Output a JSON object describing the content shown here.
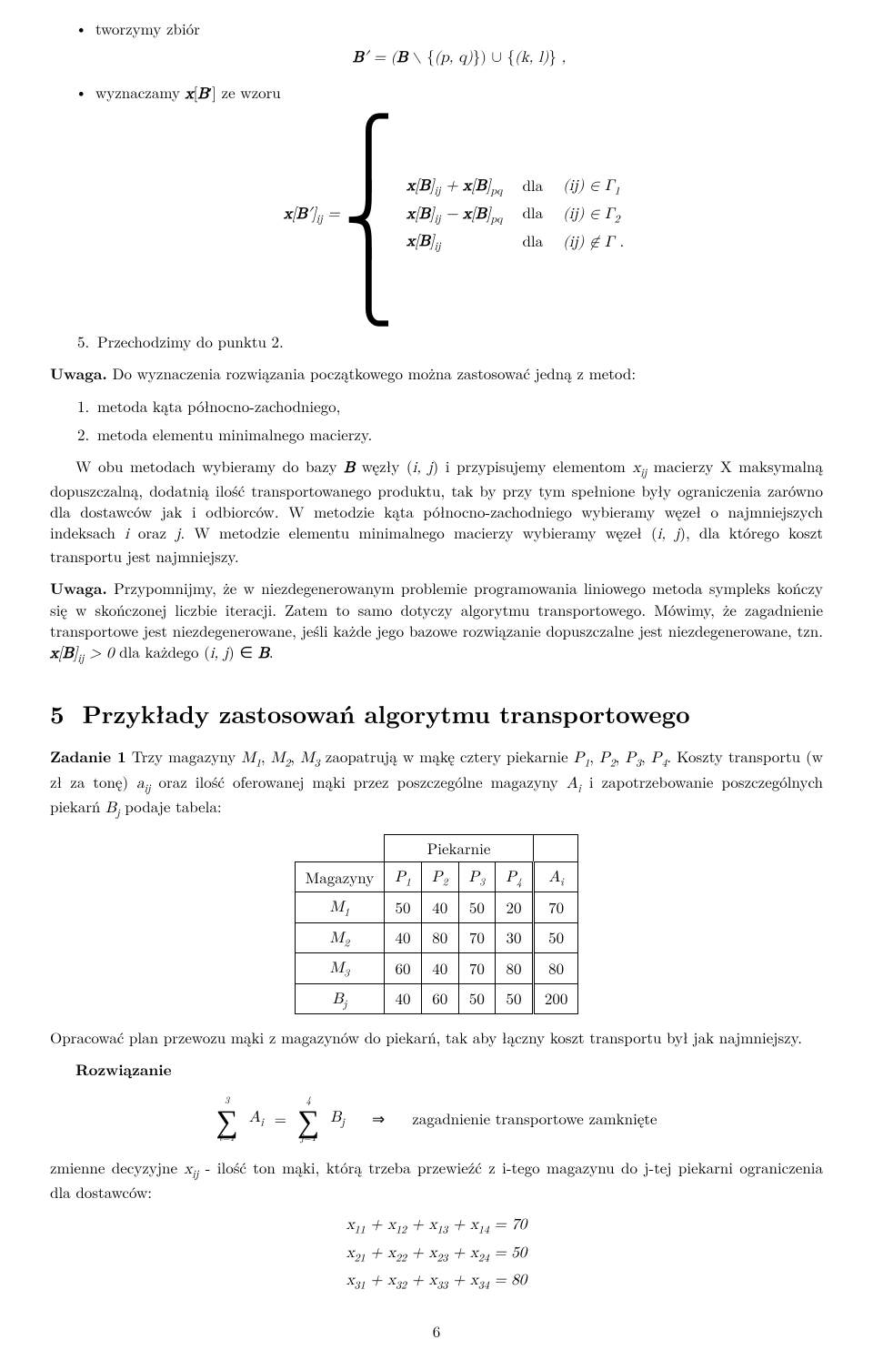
{
  "top_list": {
    "item1": "tworzymy zbiór",
    "item2_pre": "wyznaczamy ",
    "item2_math": "x[B′]",
    "item2_post": " ze wzoru"
  },
  "formula1": "B′ = (B ∖ {(p, q)}) ∪ {(k, l)} ,",
  "brace": {
    "lhs": "x[B′]",
    "lhs_sub": "ij",
    "eq": " = ",
    "row1a": "x[B]",
    "row1a_sub": "ij",
    "row1plus": " + x[B]",
    "row1b_sub": "pq",
    "row1dla": "dla",
    "row1c": "(ij) ∈ Γ",
    "row1c_sub": "1",
    "row2a": "x[B]",
    "row2a_sub": "ij",
    "row2minus": " − x[B]",
    "row2b_sub": "pq",
    "row2dla": "dla",
    "row2c": "(ij) ∈ Γ",
    "row2c_sub": "2",
    "row3a": "x[B]",
    "row3a_sub": "ij",
    "row3dla": "dla",
    "row3c": "(ij) ∉ Γ ."
  },
  "step5_num": "5.",
  "step5": "Przechodzimy do punktu 2.",
  "uwaga1_label": "Uwaga.",
  "uwaga1_text": " Do wyznaczenia rozwiązania początkowego można zastosować jedną z metod:",
  "methods": {
    "m1_num": "1.",
    "m1": "metoda kąta północno-zachodniego,",
    "m2_num": "2.",
    "m2": "metoda elementu minimalnego macierzy."
  },
  "big_para1": "W obu metodach wybieramy do bazy B węzły (i, j) i przypisujemy elementom xᵢⱼ macierzy X maksymalną dopuszczalną, dodatnią ilość transportowanego produktu, tak by przy tym spełnione były ograniczenia zarówno dla dostawców jak i odbiorców. W metodzie kąta północno-zachodniego wybieramy węzeł o najmniejszych indeksach i oraz j. W metodzie elementu minimalnego macierzy wybieramy węzeł (i, j), dla którego koszt transportu jest najmniejszy.",
  "uwaga2_label": "Uwaga.",
  "uwaga2_text": " Przypomnijmy, że w niezdegenerowanym problemie programowania liniowego metoda sympleks kończy się w skończonej liczbie iteracji. Zatem to samo dotyczy algorytmu transportowego. Mówimy, że zagadnienie transportowe jest niezdegenerowane, jeśli każde jego bazowe rozwiązanie dopuszczalne jest niezdegenerowane, tzn. x[B]ᵢⱼ > 0 dla każdego (i, j) ∈ B.",
  "section": {
    "num": "5",
    "title": "Przykłady zastosowań algorytmu transportowego"
  },
  "zad1_label": "Zadanie 1",
  "zad1_text": " Trzy magazyny M₁, M₂, M₃ zaopatrują w mąkę cztery piekarnie P₁, P₂, P₃, P₄. Koszty transportu (w zł za tonę) aᵢⱼ oraz ilość oferowanej mąki przez poszczególne magazyny Aᵢ i zapotrzebowanie poszczególnych piekarń Bⱼ podaje tabela:",
  "table": {
    "pie_header": "Piekarnie",
    "mag_header": "Magazyny",
    "cols": [
      "P₁",
      "P₂",
      "P₃",
      "P₄",
      "Aᵢ"
    ],
    "rows": [
      {
        "label": "M₁",
        "cells": [
          "50",
          "40",
          "50",
          "20",
          "70"
        ]
      },
      {
        "label": "M₂",
        "cells": [
          "40",
          "80",
          "70",
          "30",
          "50"
        ]
      },
      {
        "label": "M₃",
        "cells": [
          "60",
          "40",
          "70",
          "80",
          "80"
        ]
      },
      {
        "label": "Bⱼ",
        "cells": [
          "40",
          "60",
          "50",
          "50",
          "200"
        ]
      }
    ]
  },
  "after_table": "Opracować plan przewozu mąki z magazynów do piekarń, tak aby łączny koszt transportu był jak najmniejszy.",
  "rozw_label": "Rozwiązanie",
  "sum_formula": {
    "Aub": "3",
    "Albl": "i=1",
    "Avar": "Aᵢ",
    "eq": " = ",
    "Bub": "4",
    "Blbl": "j=1",
    "Bvar": "Bⱼ",
    "imp": "⇒",
    "text": "zagadnienie transportowe zamknięte"
  },
  "after_sum": "zmienne decyzyjne xᵢⱼ - ilość ton mąki, którą trzeba przewieźć z i-tego magazynu do j-tej piekarni ograniczenia dla dostawców:",
  "eq_align": [
    "x₁₁ + x₁₂ + x₁₃ + x₁₄ = 70",
    "x₂₁ + x₂₂ + x₂₃ + x₂₄ = 50",
    "x₃₁ + x₃₂ + x₃₃ + x₃₄ = 80"
  ],
  "page_number": "6"
}
